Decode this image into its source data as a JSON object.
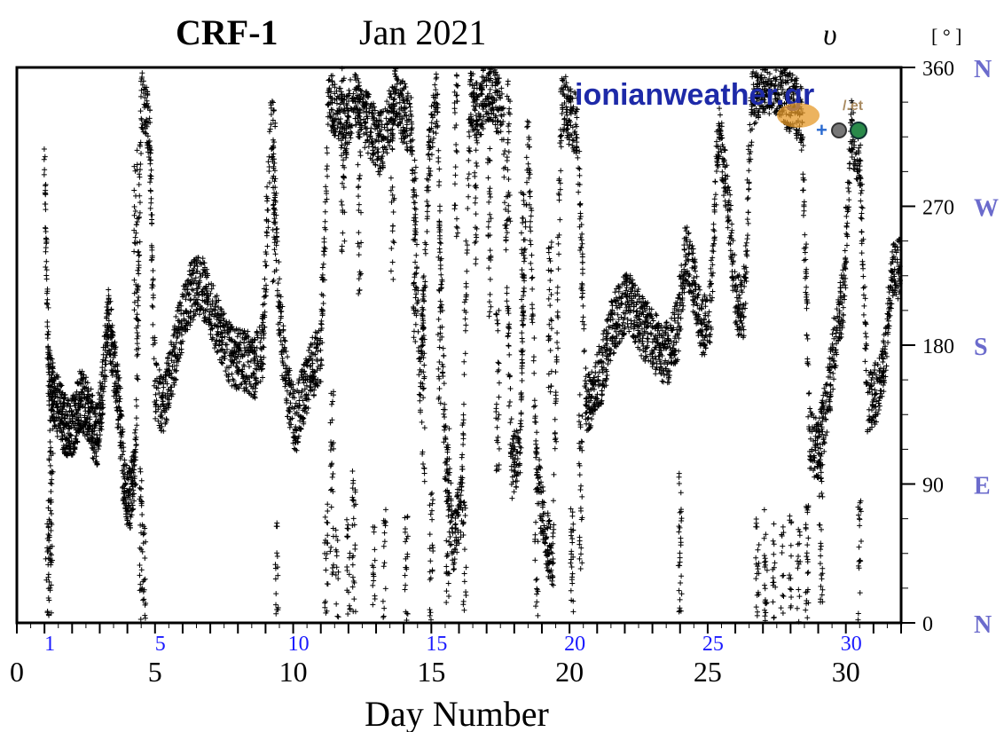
{
  "chart_data": {
    "type": "scatter",
    "title_station": "CRF-1",
    "title_period": "Jan  2021",
    "variable_symbol": "υ⃗",
    "unit_label": "[ ° ]",
    "xlabel": "Day  Number",
    "xlim": [
      0,
      32
    ],
    "ylim": [
      0,
      360
    ],
    "x_ticks": [
      "0",
      "5",
      "10",
      "15",
      "20",
      "25",
      "30"
    ],
    "x_tick_values": [
      0,
      5,
      10,
      15,
      20,
      25,
      30
    ],
    "day_labels": [
      "1",
      "5",
      "10",
      "15",
      "20",
      "25",
      "30"
    ],
    "day_label_values": [
      1,
      5,
      10,
      15,
      20,
      25,
      30
    ],
    "y_ticks": [
      "0",
      "90",
      "180",
      "270",
      "360"
    ],
    "y_tick_values": [
      0,
      90,
      180,
      270,
      360
    ],
    "compass_labels": [
      "N",
      "E",
      "S",
      "W",
      "N"
    ],
    "marker": "+",
    "grid": false,
    "colors": {
      "marker": "#000000",
      "day_labels": "#1a1aff",
      "compass": "#6b6bcc",
      "axis": "#000000"
    },
    "series": [
      {
        "x": [
          1.0,
          1.15,
          1.3,
          1.5,
          1.7,
          1.9,
          2.1,
          2.3,
          2.5,
          2.7,
          2.9,
          3.1,
          3.3,
          3.5,
          3.7,
          3.9,
          4.1,
          4.3,
          4.5,
          4.8,
          5.0,
          5.3,
          5.6,
          5.9,
          6.2,
          6.5,
          6.8,
          7.1,
          7.4,
          7.7,
          8.0,
          8.3,
          8.6,
          8.9,
          9.2,
          9.5,
          9.8,
          10.1,
          10.4,
          10.7,
          11.0,
          11.3,
          11.6,
          11.9,
          12.2,
          12.5,
          12.8,
          13.1,
          13.4,
          13.7,
          14.0,
          14.3,
          14.6,
          14.9,
          15.2,
          15.5,
          15.8,
          16.1,
          16.4,
          16.7,
          17.0,
          17.3,
          17.6,
          17.9,
          18.2,
          18.5,
          18.8,
          19.1,
          19.4,
          19.7,
          20.0,
          20.3,
          20.6,
          20.9,
          21.2,
          21.5,
          21.8,
          22.1,
          22.4,
          22.7,
          23.0,
          23.3,
          23.6,
          23.9,
          24.2,
          24.5,
          24.8,
          25.1,
          25.4,
          25.7,
          26.0,
          26.3,
          26.6,
          26.9,
          27.2,
          27.5,
          27.8,
          28.1,
          28.4,
          28.7,
          29.0,
          29.3,
          29.6,
          29.9,
          30.2,
          30.5,
          30.8,
          31.1,
          31.4,
          31.7
        ],
        "y": [
          300,
          160,
          150,
          140,
          130,
          125,
          130,
          145,
          140,
          130,
          120,
          150,
          200,
          170,
          140,
          85,
          80,
          110,
          340,
          320,
          150,
          140,
          165,
          190,
          210,
          220,
          215,
          200,
          185,
          175,
          170,
          170,
          165,
          180,
          330,
          200,
          150,
          130,
          150,
          165,
          175,
          340,
          330,
          320,
          340,
          330,
          320,
          310,
          320,
          340,
          330,
          320,
          150,
          300,
          340,
          110,
          50,
          80,
          340,
          330,
          345,
          340,
          330,
          100,
          110,
          330,
          100,
          60,
          40,
          340,
          330,
          320,
          140,
          150,
          165,
          190,
          200,
          210,
          200,
          190,
          185,
          175,
          175,
          190,
          240,
          220,
          190,
          200,
          320,
          280,
          210,
          200,
          340,
          345,
          350,
          350,
          340,
          335,
          330,
          120,
          110,
          140,
          180,
          210,
          320,
          300,
          140,
          150,
          170,
          230
        ]
      }
    ],
    "scattered_x": [
      1.1,
      1.2,
      1.25,
      4.3,
      4.5,
      4.6,
      9.3,
      9.4,
      11.2,
      11.4,
      11.6,
      11.8,
      12.0,
      12.2,
      12.4,
      12.9,
      13.3,
      13.6,
      14.1,
      14.4,
      14.7,
      15.0,
      15.3,
      15.6,
      15.9,
      16.2,
      16.6,
      17.1,
      17.4,
      17.8,
      18.3,
      18.8,
      19.3,
      20.1,
      20.4,
      24.0,
      26.8,
      27.1,
      27.4,
      27.7,
      28.0,
      28.3,
      28.6,
      29.1,
      30.5
    ],
    "scattered_y": [
      20,
      60,
      100,
      250,
      40,
      5,
      280,
      5,
      20,
      90,
      5,
      300,
      10,
      50,
      270,
      5,
      20,
      280,
      10,
      240,
      150,
      30,
      200,
      70,
      310,
      20,
      290,
      250,
      150,
      320,
      230,
      10,
      200,
      20,
      90,
      40,
      10,
      15,
      5,
      20,
      10,
      5,
      25,
      50,
      20
    ]
  },
  "watermark": {
    "text": "ionianweather.gr",
    "suffix": "/.et",
    "plus": "+"
  }
}
